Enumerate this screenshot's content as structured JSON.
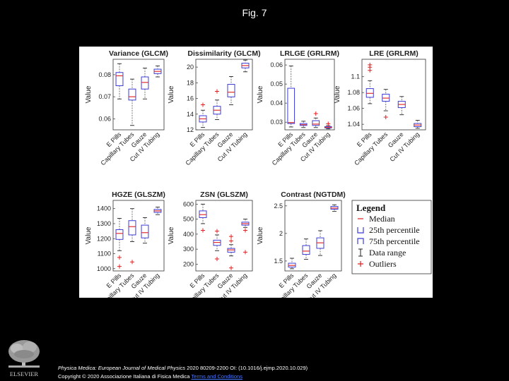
{
  "slide": {
    "title": "Fig. 7",
    "publisher": "ELSEVIER",
    "citation_journal": "Physica Medica: European Journal of Medical Physics",
    "citation_rest": " 2020 80209-2200 OI: (10.1016/j.ejmp.2020.10.029)",
    "copyright": "Copyright © 2020 Associazione Italiana di Fisica Medica",
    "copyright_link": "Terms and Conditions"
  },
  "legend": {
    "title": "Legend",
    "items": [
      "Median",
      "25th percentile",
      "75th percentile",
      "Data range",
      "Outliers"
    ]
  },
  "colors": {
    "box": "#3c3cd8",
    "median": "#e03030",
    "outlier": "#e02020",
    "whisker": "#555555"
  },
  "chart_data": [
    {
      "type": "box",
      "title": "Variance (GLCM)",
      "ylabel": "Value",
      "ylim": [
        0.055,
        0.087
      ],
      "yticks": [
        0.06,
        0.07,
        0.08
      ],
      "ytick_labels": [
        "0.06",
        "0.07",
        "0.08"
      ],
      "categories": [
        "E Pills",
        "Capillary Tubes",
        "Gauze",
        "Cut IV Tubing"
      ],
      "boxes": [
        {
          "whislo": 0.069,
          "q1": 0.075,
          "med": 0.0795,
          "q3": 0.081,
          "whishi": 0.085,
          "fliers": []
        },
        {
          "whislo": 0.057,
          "q1": 0.0685,
          "med": 0.07,
          "q3": 0.0735,
          "whishi": 0.078,
          "fliers": []
        },
        {
          "whislo": 0.069,
          "q1": 0.0735,
          "med": 0.0765,
          "q3": 0.079,
          "whishi": 0.083,
          "fliers": []
        },
        {
          "whislo": 0.079,
          "q1": 0.0805,
          "med": 0.0815,
          "q3": 0.0825,
          "whishi": 0.084,
          "fliers": []
        }
      ]
    },
    {
      "type": "box",
      "title": "Dissimilarity (GLCM)",
      "ylabel": "Value",
      "ylim": [
        12,
        21
      ],
      "yticks": [
        12,
        14,
        16,
        18,
        20
      ],
      "ytick_labels": [
        "12",
        "14",
        "16",
        "18",
        "20"
      ],
      "categories": [
        "E Pills",
        "Capillary Tubes",
        "Gauze",
        "Cut IV Tubing"
      ],
      "boxes": [
        {
          "whislo": 12.3,
          "q1": 13.0,
          "med": 13.4,
          "q3": 13.8,
          "whishi": 14.5,
          "fliers": [
            15.2
          ]
        },
        {
          "whislo": 13.3,
          "q1": 14.0,
          "med": 14.5,
          "q3": 15.0,
          "whishi": 15.8,
          "fliers": [
            16.9
          ]
        },
        {
          "whislo": 15.2,
          "q1": 16.2,
          "med": 16.8,
          "q3": 17.8,
          "whishi": 18.8,
          "fliers": []
        },
        {
          "whislo": 19.4,
          "q1": 19.9,
          "med": 20.2,
          "q3": 20.5,
          "whishi": 20.9,
          "fliers": []
        }
      ]
    },
    {
      "type": "box",
      "title": "LRLGE (GRLRM)",
      "ylabel": "Value",
      "ylim": [
        0.026,
        0.063
      ],
      "yticks": [
        0.03,
        0.04,
        0.05,
        0.06
      ],
      "ytick_labels": [
        "0.03",
        "0.04",
        "0.05",
        "0.06"
      ],
      "categories": [
        "E Pills",
        "Capillary Tubes",
        "Gauze",
        "Cut IV Tubing"
      ],
      "boxes": [
        {
          "whislo": 0.0275,
          "q1": 0.0293,
          "med": 0.0298,
          "q3": 0.0478,
          "whishi": 0.0595,
          "fliers": []
        },
        {
          "whislo": 0.0272,
          "q1": 0.0283,
          "med": 0.0287,
          "q3": 0.0293,
          "whishi": 0.0305,
          "fliers": []
        },
        {
          "whislo": 0.0272,
          "q1": 0.0283,
          "med": 0.029,
          "q3": 0.0308,
          "whishi": 0.0322,
          "fliers": [
            0.0345
          ]
        },
        {
          "whislo": 0.0265,
          "q1": 0.027,
          "med": 0.0273,
          "q3": 0.0277,
          "whishi": 0.0282,
          "fliers": [
            0.0292
          ]
        }
      ]
    },
    {
      "type": "box",
      "title": "LRE (GRLRM)",
      "ylabel": "Value",
      "ylim": [
        1.033,
        1.122
      ],
      "yticks": [
        1.04,
        1.06,
        1.08,
        1.1
      ],
      "ytick_labels": [
        "1.04",
        "1.06",
        "1.08",
        "1.1"
      ],
      "categories": [
        "E Pills",
        "Capillary Tubes",
        "Gauze",
        "Cut IV Tubing"
      ],
      "boxes": [
        {
          "whislo": 1.066,
          "q1": 1.074,
          "med": 1.079,
          "q3": 1.085,
          "whishi": 1.095,
          "fliers": [
            1.108,
            1.112,
            1.115
          ]
        },
        {
          "whislo": 1.057,
          "q1": 1.069,
          "med": 1.073,
          "q3": 1.078,
          "whishi": 1.084,
          "fliers": [
            1.049
          ]
        },
        {
          "whislo": 1.052,
          "q1": 1.061,
          "med": 1.065,
          "q3": 1.069,
          "whishi": 1.075,
          "fliers": []
        },
        {
          "whislo": 1.035,
          "q1": 1.037,
          "med": 1.039,
          "q3": 1.041,
          "whishi": 1.045,
          "fliers": []
        }
      ]
    },
    {
      "type": "box",
      "title": "HGZE (GLSZM)",
      "ylabel": "Value",
      "ylim": [
        985,
        1455
      ],
      "yticks": [
        1000,
        1100,
        1200,
        1300,
        1400
      ],
      "ytick_labels": [
        "1000",
        "1100",
        "1200",
        "1300",
        "1400"
      ],
      "categories": [
        "E Pills",
        "Capillary Tubes",
        "Gauze",
        "Cut IV Tubing"
      ],
      "boxes": [
        {
          "whislo": 1120,
          "q1": 1195,
          "med": 1235,
          "q3": 1260,
          "whishi": 1335,
          "fliers": [
            1075,
            1015
          ]
        },
        {
          "whislo": 1180,
          "q1": 1225,
          "med": 1280,
          "q3": 1320,
          "whishi": 1400,
          "fliers": [
            1045
          ]
        },
        {
          "whislo": 1170,
          "q1": 1205,
          "med": 1240,
          "q3": 1290,
          "whishi": 1340,
          "fliers": []
        },
        {
          "whislo": 1360,
          "q1": 1375,
          "med": 1385,
          "q3": 1395,
          "whishi": 1410,
          "fliers": []
        }
      ]
    },
    {
      "type": "box",
      "title": "ZSN (GLSZM)",
      "ylabel": "Value",
      "ylim": [
        155,
        625
      ],
      "yticks": [
        200,
        300,
        400,
        500,
        600
      ],
      "ytick_labels": [
        "200",
        "300",
        "400",
        "500",
        "600"
      ],
      "categories": [
        "E Pills",
        "Capillary Tubes",
        "Gauze",
        "Cut IV Tubing"
      ],
      "boxes": [
        {
          "whislo": 470,
          "q1": 510,
          "med": 530,
          "q3": 555,
          "whishi": 600,
          "fliers": [
            425
          ]
        },
        {
          "whislo": 290,
          "q1": 325,
          "med": 345,
          "q3": 360,
          "whishi": 395,
          "fliers": [
            420,
            235
          ]
        },
        {
          "whislo": 255,
          "q1": 280,
          "med": 295,
          "q3": 305,
          "whishi": 330,
          "fliers": [
            385,
            355,
            175
          ]
        },
        {
          "whislo": 445,
          "q1": 460,
          "med": 470,
          "q3": 480,
          "whishi": 500,
          "fliers": [
            425,
            280
          ]
        }
      ]
    },
    {
      "type": "box",
      "title": "Contrast (NGTDM)",
      "ylabel": "Value",
      "ylim": [
        1.32,
        2.6
      ],
      "yticks": [
        1.5,
        2,
        2.5
      ],
      "ytick_labels": [
        "1.5",
        "2",
        "2.5"
      ],
      "categories": [
        "E Pills",
        "Capillary Tubes",
        "Gauze",
        "Cut IV Tubing"
      ],
      "boxes": [
        {
          "whislo": 1.36,
          "q1": 1.39,
          "med": 1.42,
          "q3": 1.46,
          "whishi": 1.55,
          "fliers": []
        },
        {
          "whislo": 1.53,
          "q1": 1.62,
          "med": 1.68,
          "q3": 1.78,
          "whishi": 1.9,
          "fliers": []
        },
        {
          "whislo": 1.6,
          "q1": 1.73,
          "med": 1.83,
          "q3": 1.92,
          "whishi": 2.05,
          "fliers": []
        },
        {
          "whislo": 2.4,
          "q1": 2.44,
          "med": 2.46,
          "q3": 2.49,
          "whishi": 2.52,
          "fliers": []
        }
      ]
    }
  ]
}
